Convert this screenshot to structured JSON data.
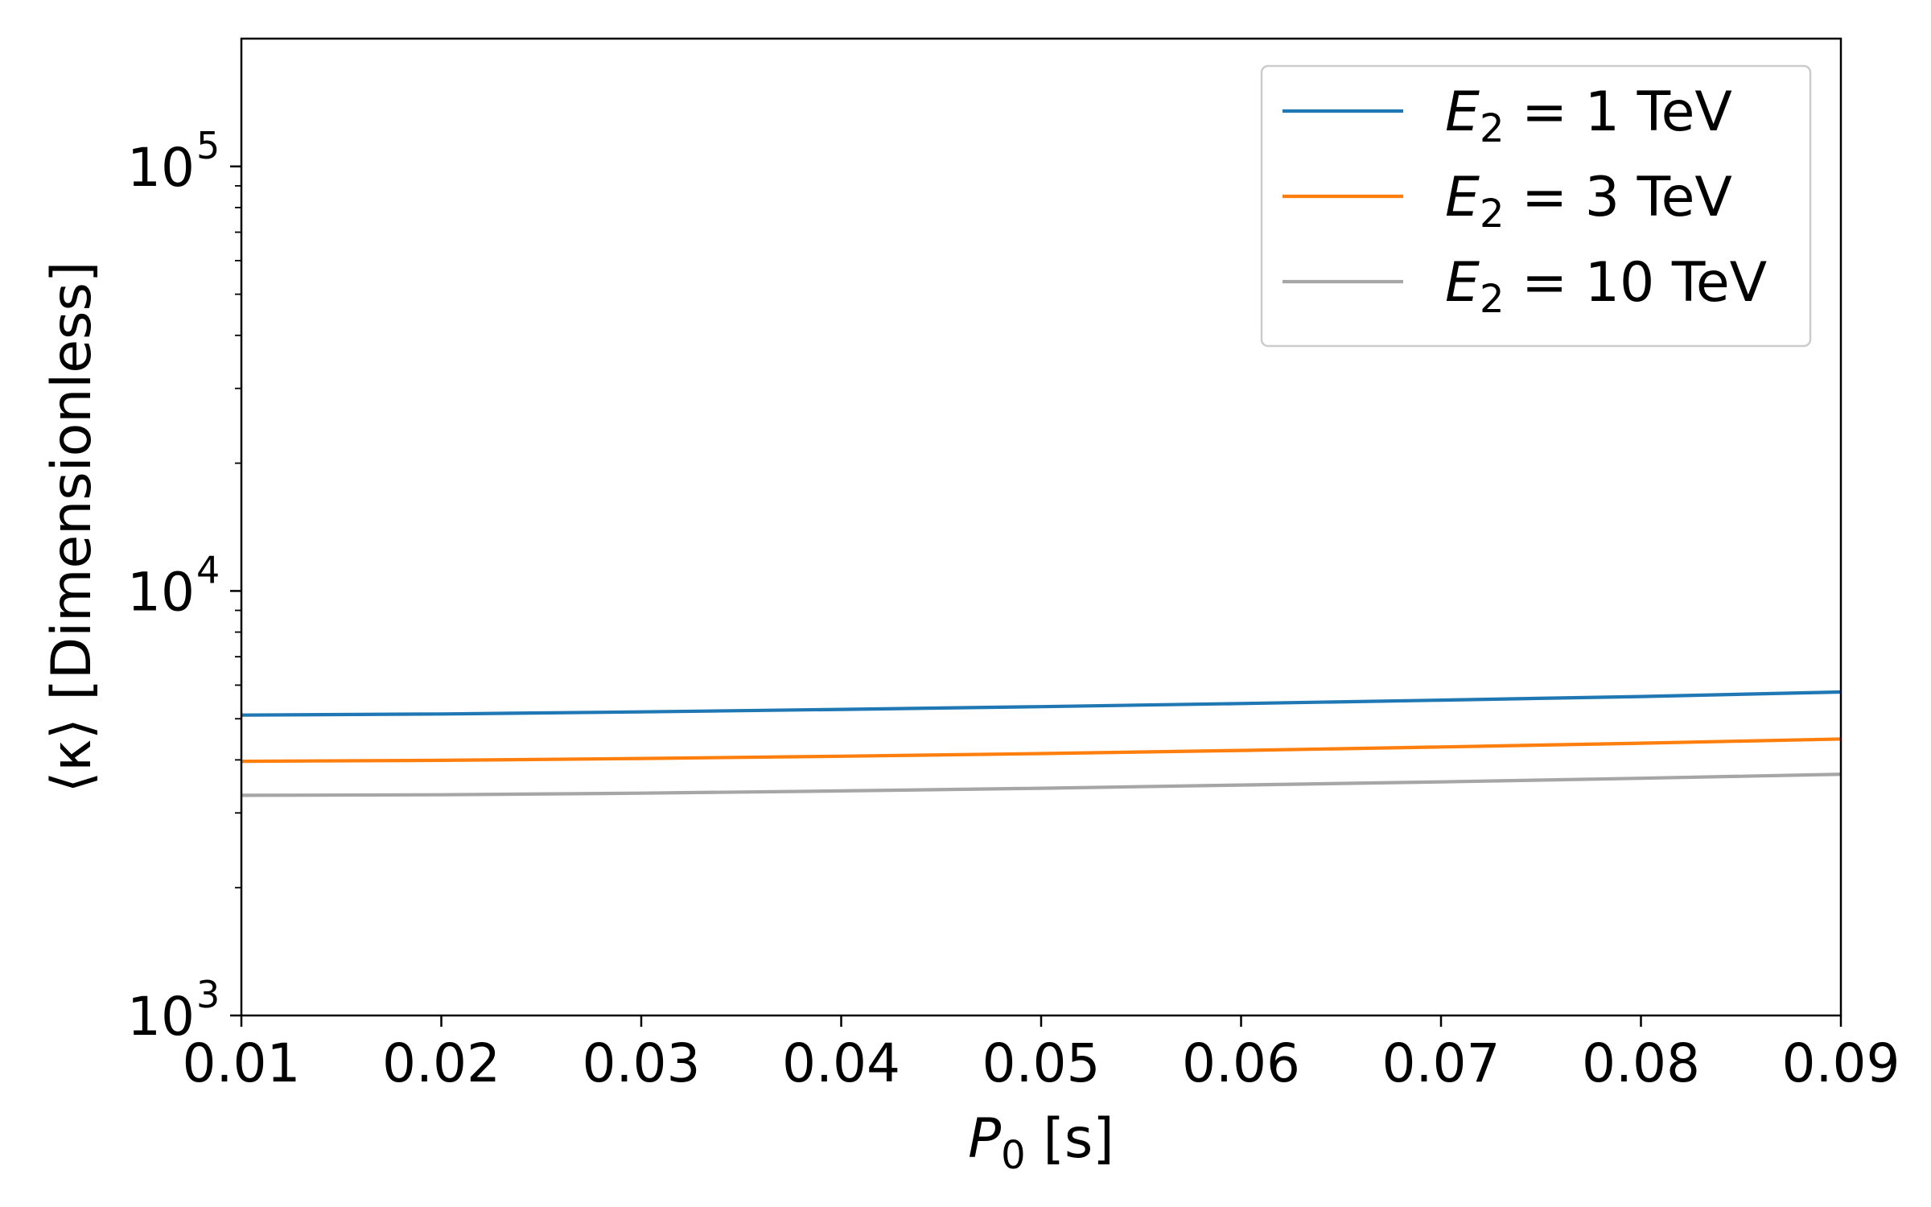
{
  "chart_data": {
    "type": "line",
    "title": "",
    "xlabel": {
      "symbol": "P",
      "subscript": "0",
      "unit": "[s]"
    },
    "ylabel": "⟨κ⟩ [Dimensionless]",
    "xlim": [
      0.01,
      0.09
    ],
    "ylim": [
      1000,
      200000
    ],
    "yscale": "log",
    "grid": false,
    "legend_position": "top-right",
    "x_ticks": [
      "0.01",
      "0.02",
      "0.03",
      "0.04",
      "0.05",
      "0.06",
      "0.07",
      "0.08",
      "0.09"
    ],
    "y_ticks": [
      {
        "value": 1000,
        "base": "10",
        "exp": "3"
      },
      {
        "value": 10000,
        "base": "10",
        "exp": "4"
      },
      {
        "value": 100000,
        "base": "10",
        "exp": "5"
      }
    ],
    "x": [
      0.01,
      0.02,
      0.03,
      0.04,
      0.05,
      0.06,
      0.07,
      0.08,
      0.09
    ],
    "series": [
      {
        "name": "E2 = 1 TeV",
        "legend": {
          "symbol": "E",
          "subscript": "2",
          "rest": " = 1 TeV"
        },
        "color": "#1f77b4",
        "values": [
          5100,
          5130,
          5190,
          5260,
          5340,
          5430,
          5530,
          5640,
          5780
        ]
      },
      {
        "name": "E2 = 3 TeV",
        "legend": {
          "symbol": "E",
          "subscript": "2",
          "rest": " = 3 TeV"
        },
        "color": "#ff7f0e",
        "values": [
          3970,
          3990,
          4030,
          4080,
          4140,
          4210,
          4290,
          4380,
          4480
        ]
      },
      {
        "name": "E2 = 10 TeV",
        "legend": {
          "symbol": "E",
          "subscript": "2",
          "rest": " = 10 TeV"
        },
        "color": "#a6a6a6",
        "values": [
          3300,
          3310,
          3340,
          3380,
          3430,
          3490,
          3550,
          3620,
          3700
        ]
      }
    ]
  }
}
